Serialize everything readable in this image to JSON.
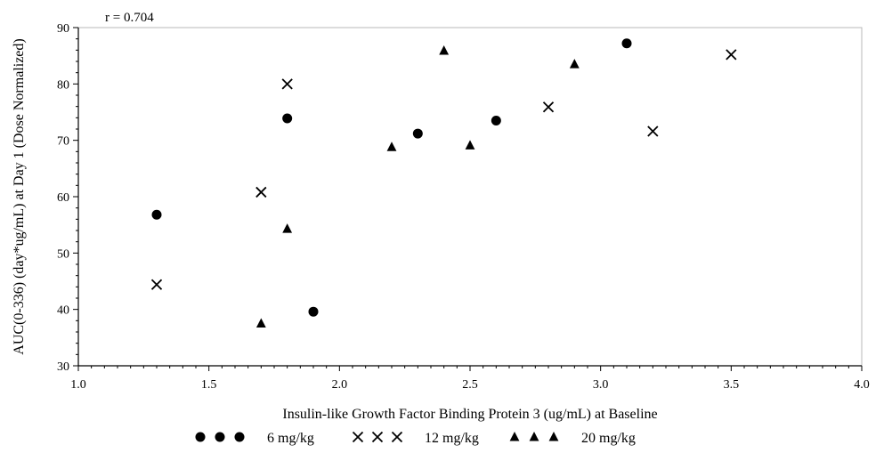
{
  "chart_data": {
    "type": "scatter",
    "title": "",
    "xlabel": "Insulin-like Growth Factor Binding Protein 3 (ug/mL) at Baseline",
    "ylabel": "AUC(0-336) (day*ug/mL) at Day 1 (Dose Normalized)",
    "annotation": "r = 0.704",
    "xlim": [
      1.0,
      4.0
    ],
    "ylim": [
      30,
      90
    ],
    "xticks": [
      1.0,
      1.5,
      2.0,
      2.5,
      3.0,
      3.5,
      4.0
    ],
    "xtick_labels": [
      "1.0",
      "1.5",
      "2.0",
      "2.5",
      "3.0",
      "3.5",
      "4.0"
    ],
    "yticks": [
      30,
      40,
      50,
      60,
      70,
      80,
      90
    ],
    "ytick_labels": [
      "30",
      "40",
      "50",
      "60",
      "70",
      "80",
      "90"
    ],
    "grid": false,
    "legend_position": "bottom",
    "series": [
      {
        "name": "6 mg/kg",
        "marker": "circle",
        "x": [
          1.3,
          1.8,
          1.9,
          2.3,
          2.6,
          3.1
        ],
        "y": [
          56.8,
          73.9,
          39.6,
          71.2,
          73.5,
          87.2
        ]
      },
      {
        "name": "12 mg/kg",
        "marker": "x",
        "x": [
          1.3,
          1.7,
          1.8,
          2.8,
          3.2,
          3.5
        ],
        "y": [
          44.4,
          60.8,
          80.0,
          75.9,
          71.6,
          85.2
        ]
      },
      {
        "name": "20 mg/kg",
        "marker": "triangle",
        "x": [
          1.7,
          1.8,
          2.2,
          2.4,
          2.5,
          2.9
        ],
        "y": [
          37.5,
          54.3,
          68.8,
          85.9,
          69.1,
          83.5
        ]
      }
    ]
  }
}
